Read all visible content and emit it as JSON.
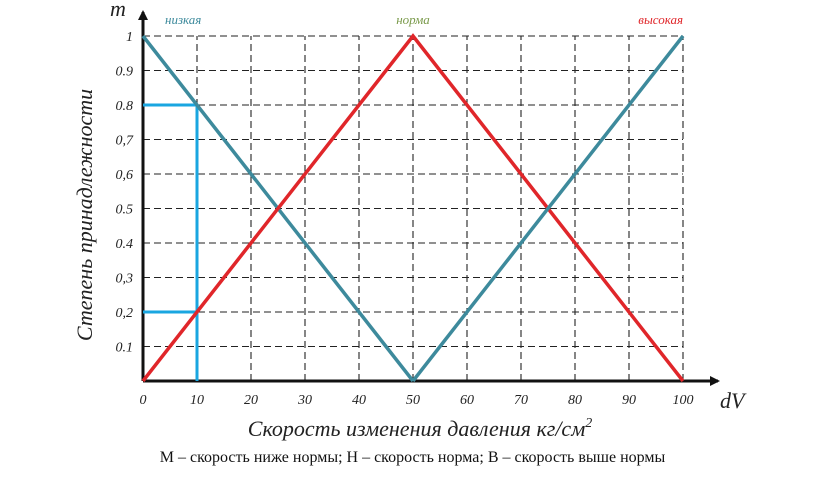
{
  "chart_data": {
    "type": "line",
    "title": "",
    "x_symbol": "dV",
    "y_symbol": "m",
    "xlabel": "Скорость изменения давления кг/см",
    "xlabel_sup": "2",
    "ylabel": "Степень принадлежности",
    "xlim": [
      0,
      100
    ],
    "ylim": [
      0,
      1
    ],
    "x_ticks": [
      "0",
      "10",
      "20",
      "30",
      "40",
      "50",
      "60",
      "70",
      "80",
      "90",
      "100"
    ],
    "y_ticks": [
      "0.1",
      "0,2",
      "0,3",
      "0.4",
      "0.5",
      "0,6",
      "0,7",
      "0.8",
      "0.9",
      "1"
    ],
    "grid": true,
    "series": [
      {
        "name": "низкая",
        "color": "#3d8a9c",
        "x": [
          0,
          50
        ],
        "y": [
          1,
          0
        ]
      },
      {
        "name": "норма",
        "color": "#e0262a",
        "x": [
          0,
          50,
          100
        ],
        "y": [
          0,
          1,
          0
        ]
      },
      {
        "name": "высокая",
        "color": "#3d8a9c",
        "x": [
          50,
          100
        ],
        "y": [
          0,
          1
        ]
      }
    ],
    "series_label_colors": [
      "#3d8a9c",
      "#7a9a4a",
      "#e0262a"
    ],
    "annotation": {
      "color": "#1aa6e0",
      "x": 10,
      "y_values": [
        0.8,
        0.2
      ]
    }
  },
  "caption": "М – скорость ниже нормы; Н – скорость норма; В – скорость выше нормы"
}
